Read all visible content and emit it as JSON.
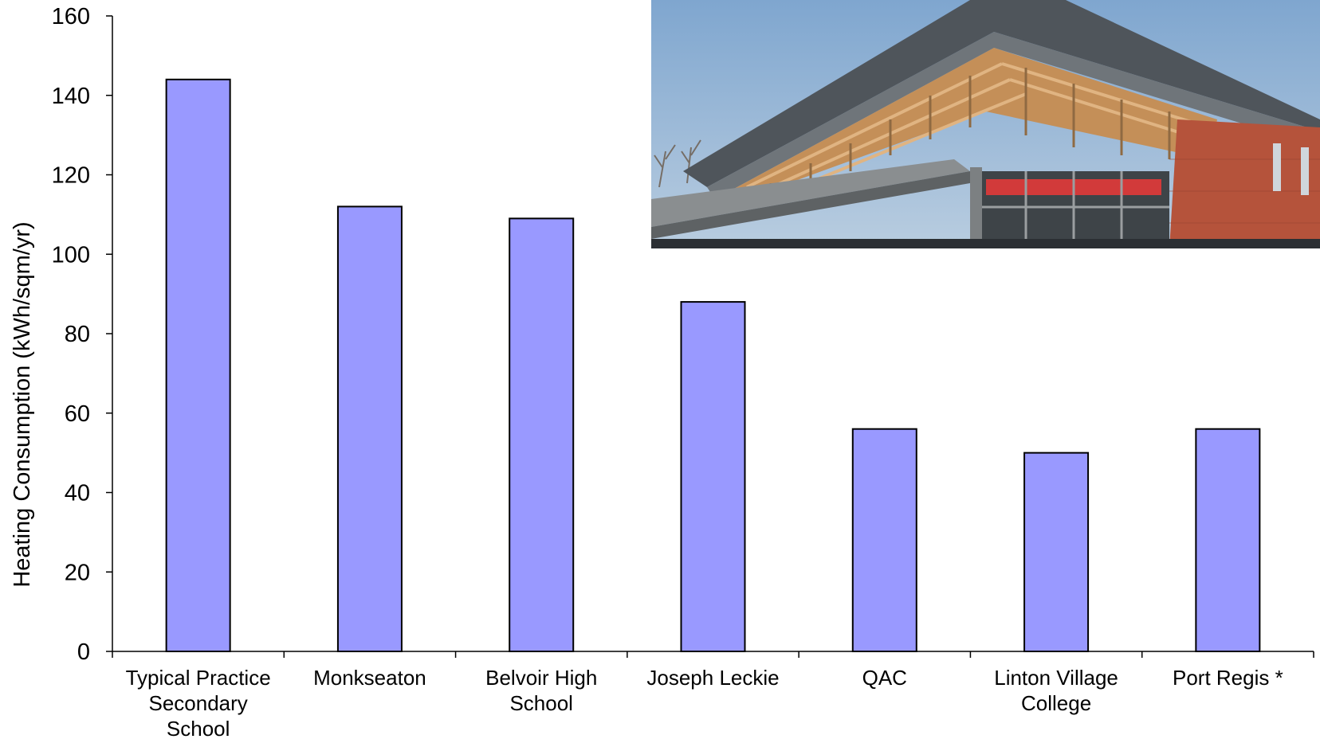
{
  "chart_data": {
    "type": "bar",
    "title": "",
    "xlabel": "",
    "ylabel": "Heating Consumption (kWh/sqm/yr)",
    "ylim": [
      0,
      160
    ],
    "yticks": [
      0,
      20,
      40,
      60,
      80,
      100,
      120,
      140,
      160
    ],
    "categories": [
      [
        "Typical Practice",
        "Secondary",
        "School"
      ],
      [
        "Monkseaton"
      ],
      [
        "Belvoir High",
        "School"
      ],
      [
        "Joseph Leckie"
      ],
      [
        "QAC"
      ],
      [
        "Linton Village",
        "College"
      ],
      [
        "Port Regis *"
      ]
    ],
    "values": [
      144,
      112,
      109,
      88,
      56,
      50,
      56
    ],
    "bar_color": "#9999ff",
    "bar_stroke": "#000000",
    "grid": false,
    "legend": "none"
  },
  "photo": {
    "subject": "school building with timber brise-soleil facade",
    "colors": {
      "sky": "#8fb2d6",
      "roof": "#5f6469",
      "timber": "#c9955e",
      "brick": "#b8543a",
      "glass_red": "#d23a3a",
      "steel": "#8a8d8f"
    }
  }
}
